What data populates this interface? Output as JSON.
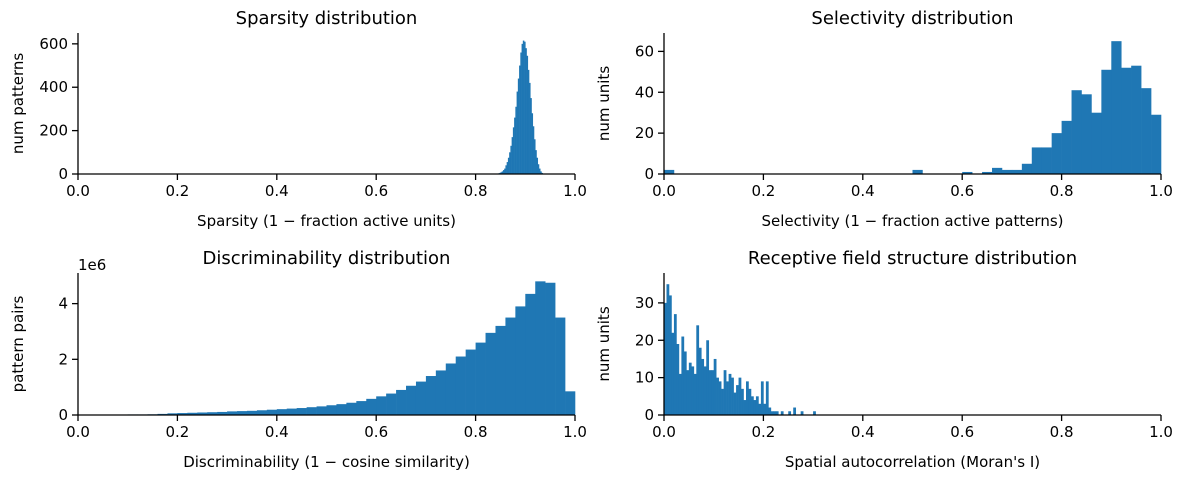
{
  "colors": {
    "bar": "#1f77b4",
    "axis": "#000000"
  },
  "chart_data": [
    {
      "type": "bar",
      "title": "Sparsity distribution",
      "xlabel": "Sparsity (1 − fraction active units)",
      "ylabel": "num patterns",
      "xlim": [
        0,
        1
      ],
      "ylim": [
        0,
        650
      ],
      "xticks": [
        "0.0",
        "0.2",
        "0.4",
        "0.6",
        "0.8",
        "1.0"
      ],
      "yticks": [
        0,
        200,
        400,
        600
      ],
      "ytick_labels": [
        "0",
        "200",
        "400",
        "600"
      ],
      "y_multiplier": "",
      "bin_width": 0.0025,
      "bins": [
        [
          0.845,
          3
        ],
        [
          0.8475,
          5
        ],
        [
          0.85,
          8
        ],
        [
          0.8525,
          12
        ],
        [
          0.855,
          18
        ],
        [
          0.8575,
          25
        ],
        [
          0.86,
          40
        ],
        [
          0.8625,
          55
        ],
        [
          0.865,
          75
        ],
        [
          0.8675,
          100
        ],
        [
          0.87,
          130
        ],
        [
          0.8725,
          170
        ],
        [
          0.875,
          215
        ],
        [
          0.8775,
          260
        ],
        [
          0.88,
          310
        ],
        [
          0.8825,
          380
        ],
        [
          0.885,
          440
        ],
        [
          0.8875,
          500
        ],
        [
          0.89,
          560
        ],
        [
          0.8925,
          600
        ],
        [
          0.895,
          615
        ],
        [
          0.8975,
          610
        ],
        [
          0.9,
          580
        ],
        [
          0.9025,
          545
        ],
        [
          0.905,
          480
        ],
        [
          0.9075,
          420
        ],
        [
          0.91,
          350
        ],
        [
          0.9125,
          280
        ],
        [
          0.915,
          220
        ],
        [
          0.9175,
          160
        ],
        [
          0.92,
          110
        ],
        [
          0.9225,
          75
        ],
        [
          0.925,
          45
        ],
        [
          0.9275,
          25
        ],
        [
          0.93,
          12
        ],
        [
          0.9325,
          5
        ],
        [
          0.935,
          2
        ]
      ]
    },
    {
      "type": "bar",
      "title": "Selectivity distribution",
      "xlabel": "Selectivity (1 − fraction active patterns)",
      "ylabel": "num units",
      "xlim": [
        0,
        1
      ],
      "ylim": [
        0,
        69
      ],
      "xticks": [
        "0.0",
        "0.2",
        "0.4",
        "0.6",
        "0.8",
        "1.0"
      ],
      "yticks": [
        0,
        20,
        40,
        60
      ],
      "ytick_labels": [
        "0",
        "20",
        "40",
        "60"
      ],
      "y_multiplier": "",
      "bin_width": 0.02,
      "bins": [
        [
          0.0,
          2
        ],
        [
          0.5,
          2
        ],
        [
          0.6,
          1
        ],
        [
          0.64,
          1
        ],
        [
          0.66,
          3
        ],
        [
          0.68,
          2
        ],
        [
          0.7,
          2
        ],
        [
          0.72,
          5
        ],
        [
          0.74,
          13
        ],
        [
          0.76,
          13
        ],
        [
          0.78,
          20
        ],
        [
          0.8,
          26
        ],
        [
          0.82,
          41
        ],
        [
          0.84,
          39
        ],
        [
          0.86,
          30
        ],
        [
          0.88,
          51
        ],
        [
          0.9,
          65
        ],
        [
          0.92,
          52
        ],
        [
          0.94,
          53
        ],
        [
          0.96,
          42
        ],
        [
          0.98,
          29
        ]
      ]
    },
    {
      "type": "bar",
      "title": "Discriminability distribution",
      "xlabel": "Discriminability (1 − cosine similarity)",
      "ylabel": "pattern pairs",
      "xlim": [
        0,
        1
      ],
      "ylim": [
        0,
        5.1
      ],
      "xticks": [
        "0.0",
        "0.2",
        "0.4",
        "0.6",
        "0.8",
        "1.0"
      ],
      "yticks": [
        0,
        2,
        4
      ],
      "ytick_labels": [
        "0",
        "2",
        "4"
      ],
      "y_multiplier": "1e6",
      "bin_width": 0.02,
      "bins": [
        [
          0.0,
          0.005
        ],
        [
          0.02,
          0.005
        ],
        [
          0.04,
          0.01
        ],
        [
          0.06,
          0.01
        ],
        [
          0.08,
          0.015
        ],
        [
          0.1,
          0.02
        ],
        [
          0.12,
          0.02
        ],
        [
          0.14,
          0.025
        ],
        [
          0.16,
          0.04
        ],
        [
          0.18,
          0.06
        ],
        [
          0.2,
          0.07
        ],
        [
          0.22,
          0.08
        ],
        [
          0.24,
          0.09
        ],
        [
          0.26,
          0.1
        ],
        [
          0.28,
          0.11
        ],
        [
          0.3,
          0.13
        ],
        [
          0.32,
          0.14
        ],
        [
          0.34,
          0.15
        ],
        [
          0.36,
          0.17
        ],
        [
          0.38,
          0.19
        ],
        [
          0.4,
          0.21
        ],
        [
          0.42,
          0.23
        ],
        [
          0.44,
          0.25
        ],
        [
          0.46,
          0.28
        ],
        [
          0.48,
          0.31
        ],
        [
          0.5,
          0.35
        ],
        [
          0.52,
          0.39
        ],
        [
          0.54,
          0.44
        ],
        [
          0.56,
          0.5
        ],
        [
          0.58,
          0.58
        ],
        [
          0.6,
          0.67
        ],
        [
          0.62,
          0.77
        ],
        [
          0.64,
          0.9
        ],
        [
          0.66,
          1.05
        ],
        [
          0.68,
          1.2
        ],
        [
          0.7,
          1.4
        ],
        [
          0.72,
          1.6
        ],
        [
          0.74,
          1.85
        ],
        [
          0.76,
          2.1
        ],
        [
          0.78,
          2.35
        ],
        [
          0.8,
          2.6
        ],
        [
          0.82,
          2.95
        ],
        [
          0.84,
          3.2
        ],
        [
          0.86,
          3.5
        ],
        [
          0.88,
          3.9
        ],
        [
          0.9,
          4.35
        ],
        [
          0.92,
          4.8
        ],
        [
          0.94,
          4.75
        ],
        [
          0.96,
          3.5
        ],
        [
          0.98,
          0.85
        ]
      ]
    },
    {
      "type": "bar",
      "title": "Receptive field structure distribution",
      "xlabel": "Spatial autocorrelation (Moran's I)",
      "ylabel": "num units",
      "xlim": [
        0,
        1
      ],
      "ylim": [
        0,
        38
      ],
      "xticks": [
        "0.0",
        "0.2",
        "0.4",
        "0.6",
        "0.8",
        "1.0"
      ],
      "yticks": [
        0,
        10,
        20,
        30
      ],
      "ytick_labels": [
        "0",
        "10",
        "20",
        "30"
      ],
      "y_multiplier": "",
      "bin_width": 0.005,
      "bins": [
        [
          0.0,
          30
        ],
        [
          0.005,
          35
        ],
        [
          0.01,
          32
        ],
        [
          0.015,
          22
        ],
        [
          0.02,
          27
        ],
        [
          0.025,
          19
        ],
        [
          0.03,
          11
        ],
        [
          0.035,
          21
        ],
        [
          0.04,
          17
        ],
        [
          0.045,
          12
        ],
        [
          0.05,
          14
        ],
        [
          0.055,
          13
        ],
        [
          0.06,
          11
        ],
        [
          0.065,
          24
        ],
        [
          0.07,
          18
        ],
        [
          0.075,
          15
        ],
        [
          0.08,
          13
        ],
        [
          0.085,
          20
        ],
        [
          0.09,
          12
        ],
        [
          0.095,
          12
        ],
        [
          0.1,
          15
        ],
        [
          0.105,
          10
        ],
        [
          0.11,
          9
        ],
        [
          0.115,
          7
        ],
        [
          0.12,
          12
        ],
        [
          0.125,
          9
        ],
        [
          0.13,
          11
        ],
        [
          0.135,
          10
        ],
        [
          0.14,
          6
        ],
        [
          0.145,
          8
        ],
        [
          0.15,
          10
        ],
        [
          0.155,
          7
        ],
        [
          0.16,
          4
        ],
        [
          0.165,
          9
        ],
        [
          0.17,
          7
        ],
        [
          0.175,
          5
        ],
        [
          0.18,
          4
        ],
        [
          0.185,
          5
        ],
        [
          0.19,
          3
        ],
        [
          0.195,
          9
        ],
        [
          0.2,
          3
        ],
        [
          0.205,
          9
        ],
        [
          0.21,
          2
        ],
        [
          0.215,
          1
        ],
        [
          0.22,
          1
        ],
        [
          0.225,
          1
        ],
        [
          0.235,
          1
        ],
        [
          0.25,
          1
        ],
        [
          0.26,
          2
        ],
        [
          0.275,
          1
        ],
        [
          0.3,
          1
        ]
      ]
    }
  ]
}
